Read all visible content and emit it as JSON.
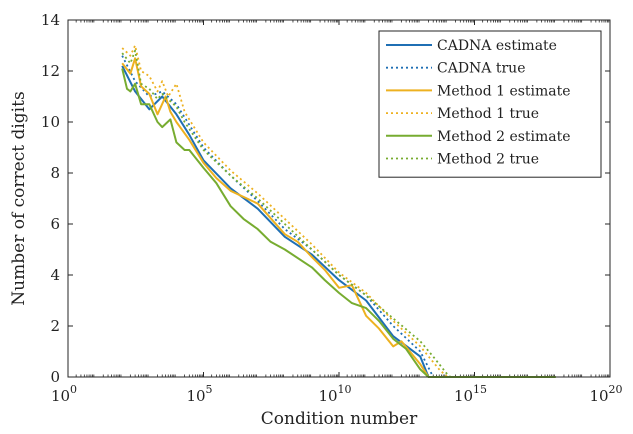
{
  "chart_data": {
    "type": "line",
    "xlabel": "Condition number",
    "ylabel": "Number of correct digits",
    "x_scale": "log10",
    "xlim": [
      1,
      1e+20
    ],
    "ylim": [
      0,
      14
    ],
    "x_ticks": [
      {
        "base": "10",
        "exp": "0"
      },
      {
        "base": "10",
        "exp": "5"
      },
      {
        "base": "10",
        "exp": "10"
      },
      {
        "base": "10",
        "exp": "15"
      },
      {
        "base": "10",
        "exp": "20"
      }
    ],
    "y_ticks": [
      "0",
      "2",
      "4",
      "6",
      "8",
      "10",
      "12",
      "14"
    ],
    "legend_position": "top-right",
    "series": [
      {
        "name": "CADNA estimate",
        "color": "#1f6fb4",
        "style": "solid",
        "points": [
          [
            100.0,
            12.2
          ],
          [
            300.0,
            11.2
          ],
          [
            1000.0,
            10.5
          ],
          [
            3000.0,
            11.0
          ],
          [
            10000.0,
            10.3
          ],
          [
            30000.0,
            9.5
          ],
          [
            100000.0,
            8.5
          ],
          [
            1000000.0,
            7.4
          ],
          [
            10000000.0,
            6.6
          ],
          [
            100000000.0,
            5.5
          ],
          [
            1000000000.0,
            4.8
          ],
          [
            10000000000.0,
            3.8
          ],
          [
            100000000000.0,
            3.0
          ],
          [
            1000000000000.0,
            1.6
          ],
          [
            10000000000000.0,
            0.8
          ],
          [
            20000000000000.0,
            0
          ]
        ]
      },
      {
        "name": "CADNA true",
        "color": "#1f6fb4",
        "style": "dotted",
        "points": [
          [
            100.0,
            12.6
          ],
          [
            300.0,
            11.6
          ],
          [
            1000.0,
            11.0
          ],
          [
            3000.0,
            11.2
          ],
          [
            10000.0,
            10.7
          ],
          [
            100000.0,
            9.0
          ],
          [
            1000000.0,
            7.9
          ],
          [
            10000000.0,
            6.9
          ],
          [
            100000000.0,
            5.8
          ],
          [
            1000000000.0,
            5.0
          ],
          [
            10000000000.0,
            4.0
          ],
          [
            100000000000.0,
            3.2
          ],
          [
            1000000000000.0,
            2.0
          ],
          [
            10000000000000.0,
            1.0
          ],
          [
            30000000000000.0,
            0
          ]
        ]
      },
      {
        "name": "Method 1 estimate",
        "color": "#edb120",
        "style": "solid",
        "points": [
          [
            100.0,
            12.3
          ],
          [
            200.0,
            11.9
          ],
          [
            300.0,
            12.5
          ],
          [
            500.0,
            11.4
          ],
          [
            1000.0,
            11.1
          ],
          [
            2000.0,
            10.3
          ],
          [
            4000.0,
            11.0
          ],
          [
            6000.0,
            10.4
          ],
          [
            10000.0,
            10.0
          ],
          [
            30000.0,
            9.3
          ],
          [
            100000.0,
            8.4
          ],
          [
            300000.0,
            7.8
          ],
          [
            1000000.0,
            7.3
          ],
          [
            10000000.0,
            6.8
          ],
          [
            100000000.0,
            5.6
          ],
          [
            300000000.0,
            5.3
          ],
          [
            1000000000.0,
            4.7
          ],
          [
            3000000000.0,
            4.2
          ],
          [
            10000000000.0,
            3.5
          ],
          [
            30000000000.0,
            3.6
          ],
          [
            100000000000.0,
            2.4
          ],
          [
            300000000000.0,
            1.9
          ],
          [
            1000000000000.0,
            1.2
          ],
          [
            2000000000000.0,
            1.4
          ],
          [
            10000000000000.0,
            0.5
          ],
          [
            20000000000000.0,
            0
          ]
        ]
      },
      {
        "name": "Method 1 true",
        "color": "#edb120",
        "style": "dotted",
        "points": [
          [
            100.0,
            12.9
          ],
          [
            200.0,
            12.6
          ],
          [
            300.0,
            13.0
          ],
          [
            500.0,
            12.0
          ],
          [
            1000.0,
            11.8
          ],
          [
            2000.0,
            11.2
          ],
          [
            3000.0,
            11.6
          ],
          [
            5000.0,
            11.0
          ],
          [
            10000.0,
            11.5
          ],
          [
            20000.0,
            10.4
          ],
          [
            100000.0,
            9.2
          ],
          [
            1000000.0,
            8.1
          ],
          [
            10000000.0,
            7.2
          ],
          [
            100000000.0,
            6.2
          ],
          [
            1000000000.0,
            5.2
          ],
          [
            10000000000.0,
            4.1
          ],
          [
            100000000000.0,
            3.3
          ],
          [
            1000000000000.0,
            2.2
          ],
          [
            10000000000000.0,
            1.2
          ],
          [
            50000000000000.0,
            0.3
          ],
          [
            100000000000000.0,
            0
          ]
        ]
      },
      {
        "name": "Method 2 estimate",
        "color": "#77ac30",
        "style": "solid",
        "points": [
          [
            100.0,
            12.1
          ],
          [
            150.0,
            11.3
          ],
          [
            200.0,
            11.2
          ],
          [
            300.0,
            11.5
          ],
          [
            500.0,
            10.7
          ],
          [
            1000.0,
            10.7
          ],
          [
            2000.0,
            10.0
          ],
          [
            3000.0,
            9.8
          ],
          [
            6000.0,
            10.1
          ],
          [
            10000.0,
            9.2
          ],
          [
            20000.0,
            8.9
          ],
          [
            30000.0,
            8.9
          ],
          [
            100000.0,
            8.2
          ],
          [
            300000.0,
            7.6
          ],
          [
            1000000.0,
            6.7
          ],
          [
            3000000.0,
            6.2
          ],
          [
            10000000.0,
            5.8
          ],
          [
            30000000.0,
            5.3
          ],
          [
            100000000.0,
            5.0
          ],
          [
            1000000000.0,
            4.3
          ],
          [
            3000000000.0,
            3.8
          ],
          [
            10000000000.0,
            3.3
          ],
          [
            30000000000.0,
            2.9
          ],
          [
            100000000000.0,
            2.7
          ],
          [
            300000000000.0,
            2.2
          ],
          [
            1000000000000.0,
            1.5
          ],
          [
            3000000000000.0,
            1.1
          ],
          [
            10000000000000.0,
            0.3
          ],
          [
            20000000000000.0,
            0
          ],
          [
            1e+18,
            0
          ]
        ]
      },
      {
        "name": "Method 2 true",
        "color": "#77ac30",
        "style": "dotted",
        "points": [
          [
            100.0,
            12.7
          ],
          [
            200.0,
            12.3
          ],
          [
            300.0,
            12.8
          ],
          [
            500.0,
            11.5
          ],
          [
            1000.0,
            11.3
          ],
          [
            2000.0,
            10.9
          ],
          [
            3000.0,
            11.1
          ],
          [
            10000.0,
            10.6
          ],
          [
            20000.0,
            10.0
          ],
          [
            100000.0,
            8.9
          ],
          [
            1000000.0,
            7.9
          ],
          [
            10000000.0,
            7.0
          ],
          [
            100000000.0,
            6.0
          ],
          [
            1000000000.0,
            5.0
          ],
          [
            10000000000.0,
            4.0
          ],
          [
            100000000000.0,
            3.2
          ],
          [
            1000000000000.0,
            2.3
          ],
          [
            10000000000000.0,
            1.4
          ],
          [
            30000000000000.0,
            0.8
          ],
          [
            100000000000000.0,
            0.1
          ],
          [
            130000000000000.0,
            0
          ]
        ]
      }
    ]
  }
}
